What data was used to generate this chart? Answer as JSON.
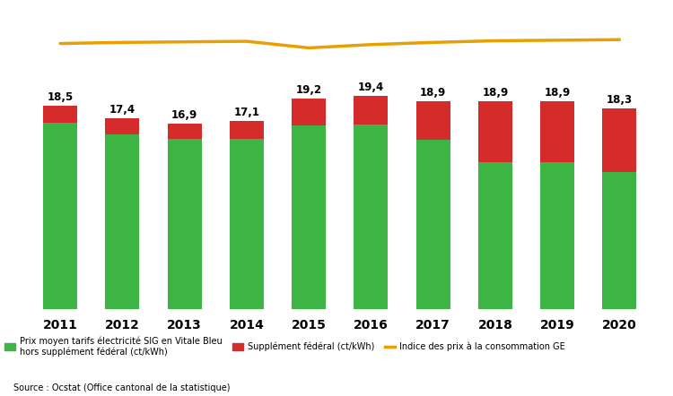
{
  "years": [
    "2011",
    "2012",
    "2013",
    "2014",
    "2015",
    "2016",
    "2017",
    "2018",
    "2019",
    "2020"
  ],
  "totals": [
    18.5,
    17.4,
    16.9,
    17.1,
    19.2,
    19.4,
    18.9,
    18.9,
    18.9,
    18.3
  ],
  "green_values": [
    17.0,
    15.9,
    15.5,
    15.5,
    16.7,
    16.8,
    15.4,
    13.4,
    13.4,
    12.5
  ],
  "red_values": [
    1.5,
    1.5,
    1.4,
    1.6,
    2.5,
    2.6,
    3.5,
    5.5,
    5.5,
    5.8
  ],
  "green_color": "#3cb544",
  "red_color": "#d62b2b",
  "orange_color": "#e8a000",
  "bar_width": 0.55,
  "ylim": [
    0,
    26
  ],
  "legend_green": "Prix moyen tarifs électricité SIG en Vitale Bleu\nhors supplément fédéral (ct/kWh)",
  "legend_red": "Supplément fédéral (ct/kWh)",
  "legend_orange": "Indice des prix à la consommation GE",
  "source_text": "Source : Ocstat (Office cantonal de la statistique)",
  "orange_line_y": [
    24.2,
    24.3,
    24.35,
    24.4,
    23.8,
    24.1,
    24.3,
    24.45,
    24.5,
    24.55
  ],
  "background_color": "#ffffff"
}
